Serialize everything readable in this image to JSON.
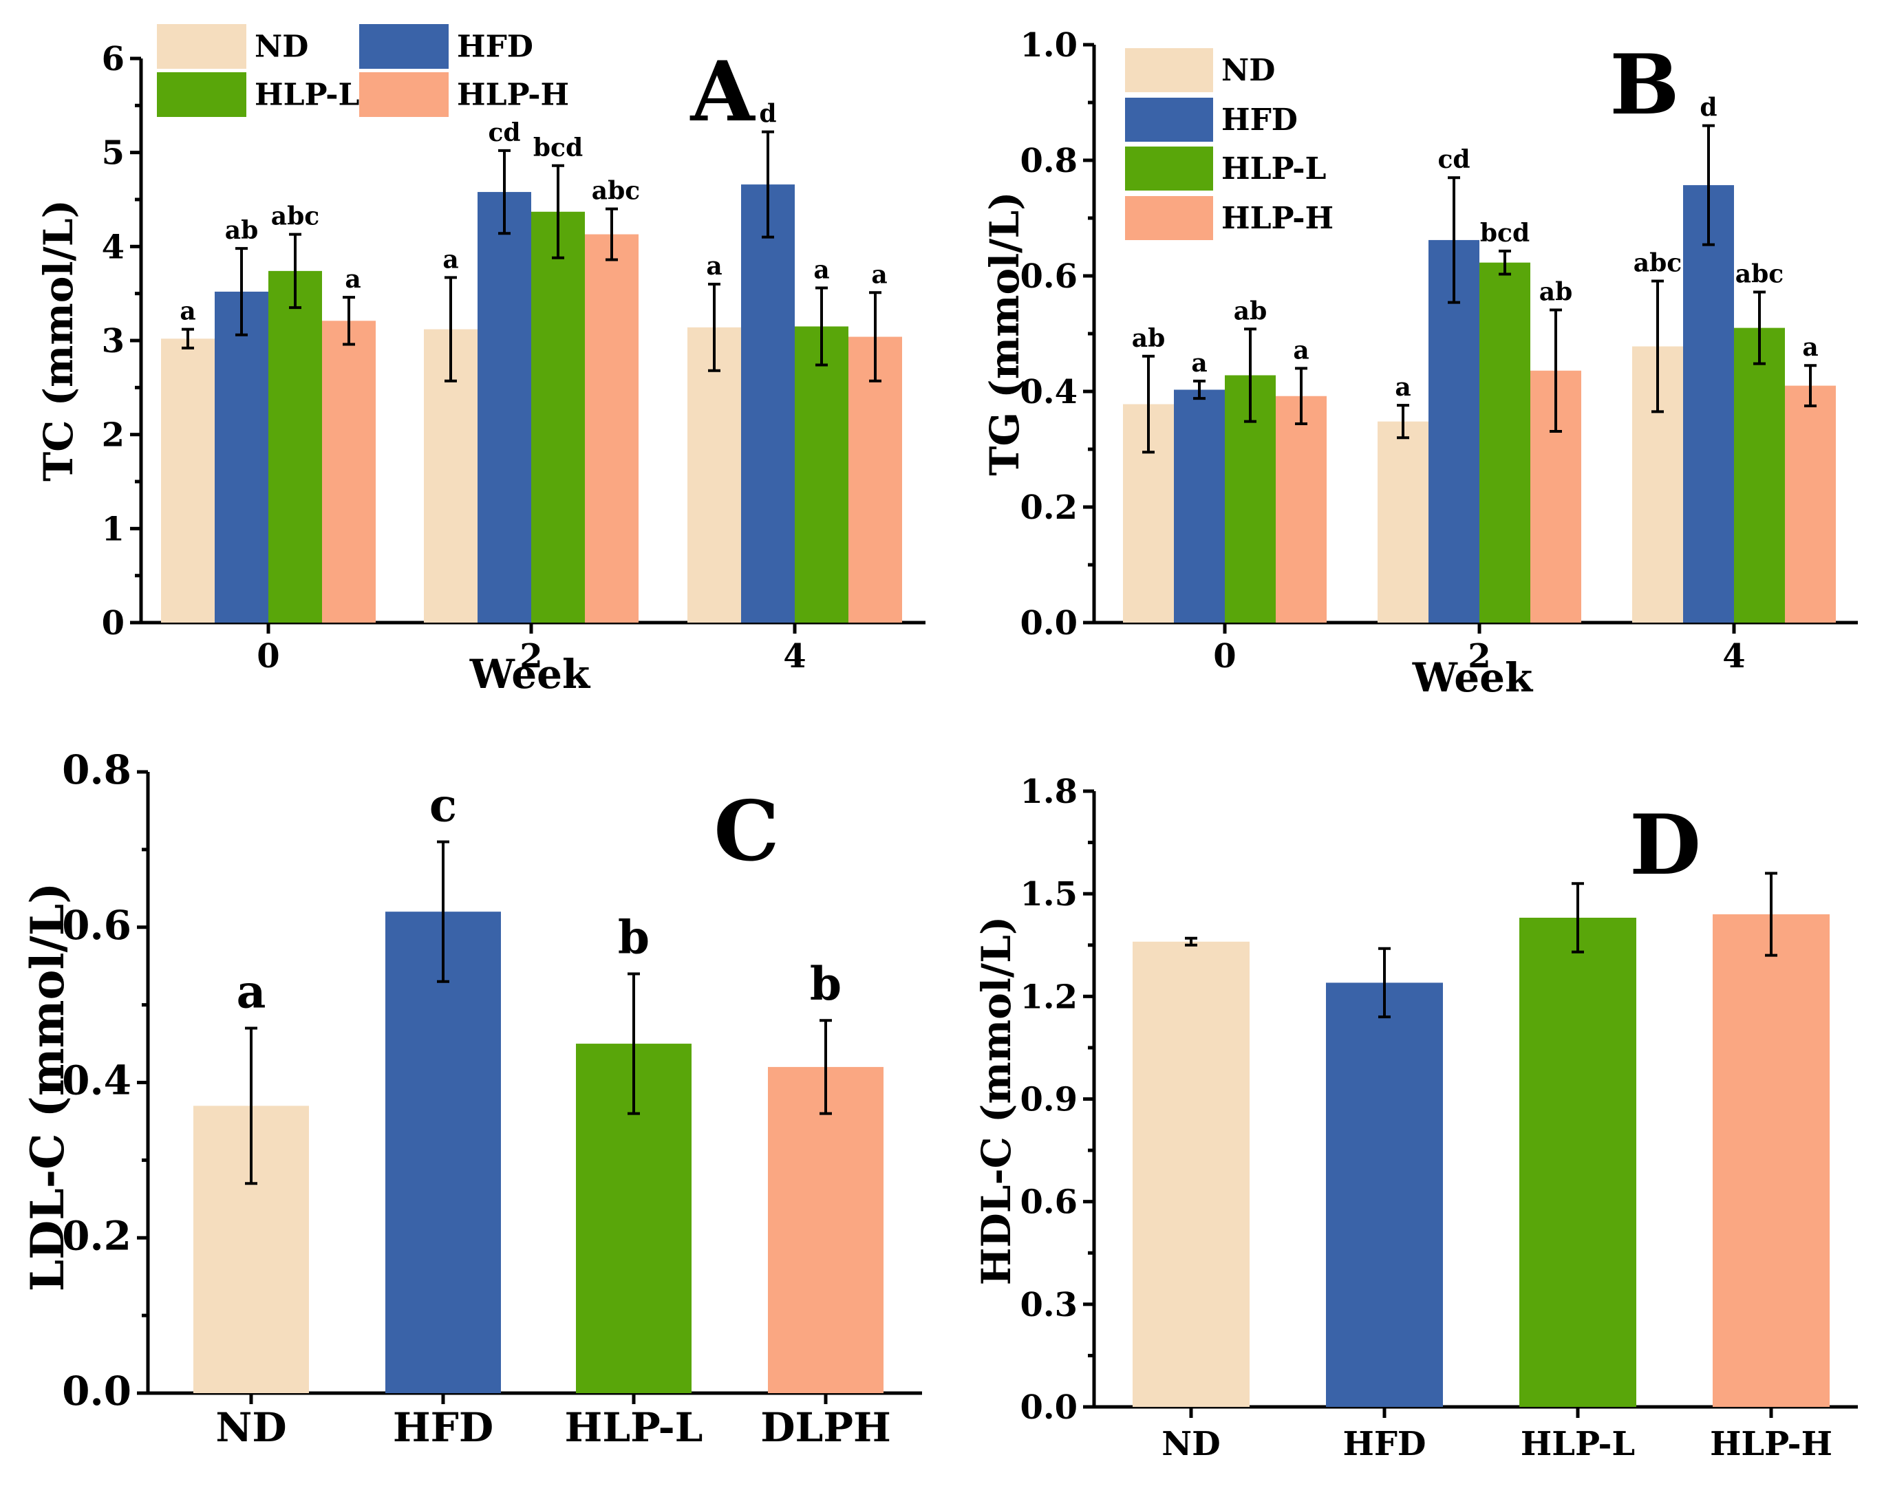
{
  "colors": {
    "ND": "#F5DDBE",
    "HFD": "#3A63A8",
    "HLP-L": "#59A60A",
    "HLP-H": "#FAA782"
  },
  "chart_data": [
    {
      "id": "A",
      "type": "bar",
      "panel_label": "A",
      "xlabel": "Week",
      "ylabel": "TC (mmol/L)",
      "ylim": [
        0,
        6
      ],
      "yticks": [
        "0",
        "1",
        "2",
        "3",
        "4",
        "5",
        "6"
      ],
      "categories": [
        "0",
        "2",
        "4"
      ],
      "legend": [
        "ND",
        "HFD",
        "HLP-L",
        "HLP-H"
      ],
      "series": [
        {
          "name": "ND",
          "values": [
            3.02,
            3.12,
            3.14
          ],
          "errors": [
            0.1,
            0.55,
            0.46
          ],
          "labels": [
            "a",
            "a",
            "a"
          ]
        },
        {
          "name": "HFD",
          "values": [
            3.52,
            4.58,
            4.66
          ],
          "errors": [
            0.46,
            0.44,
            0.56
          ],
          "labels": [
            "ab",
            "cd",
            "d"
          ]
        },
        {
          "name": "HLP-L",
          "values": [
            3.74,
            4.37,
            3.15
          ],
          "errors": [
            0.39,
            0.49,
            0.41
          ],
          "labels": [
            "abc",
            "bcd",
            "a"
          ]
        },
        {
          "name": "HLP-H",
          "values": [
            3.21,
            4.13,
            3.04
          ],
          "errors": [
            0.25,
            0.27,
            0.47
          ],
          "labels": [
            "a",
            "abc",
            "a"
          ]
        }
      ]
    },
    {
      "id": "B",
      "type": "bar",
      "panel_label": "B",
      "xlabel": "Week",
      "ylabel": "TG (mmol/L)",
      "ylim": [
        0,
        1
      ],
      "yticks": [
        "0.0",
        "0.2",
        "0.4",
        "0.6",
        "0.8",
        "1.0"
      ],
      "categories": [
        "0",
        "2",
        "4"
      ],
      "legend": [
        "ND",
        "HFD",
        "HLP-L",
        "HLP-H"
      ],
      "series": [
        {
          "name": "ND",
          "values": [
            0.378,
            0.348,
            0.478
          ],
          "errors": [
            0.083,
            0.028,
            0.113
          ],
          "labels": [
            "ab",
            "a",
            "abc"
          ]
        },
        {
          "name": "HFD",
          "values": [
            0.403,
            0.662,
            0.757
          ],
          "errors": [
            0.015,
            0.108,
            0.103
          ],
          "labels": [
            "a",
            "cd",
            "d"
          ]
        },
        {
          "name": "HLP-L",
          "values": [
            0.428,
            0.623,
            0.51
          ],
          "errors": [
            0.08,
            0.02,
            0.062
          ],
          "labels": [
            "ab",
            "bcd",
            "abc"
          ]
        },
        {
          "name": "HLP-H",
          "values": [
            0.392,
            0.436,
            0.41
          ],
          "errors": [
            0.048,
            0.105,
            0.035
          ],
          "labels": [
            "a",
            "ab",
            "a"
          ]
        }
      ]
    },
    {
      "id": "C",
      "type": "bar",
      "panel_label": "C",
      "xlabel": "",
      "ylabel": "LDL-C (mmol/L)",
      "ylim": [
        0,
        0.8
      ],
      "yticks": [
        "0.0",
        "0.2",
        "0.4",
        "0.6",
        "0.8"
      ],
      "categories": [
        "ND",
        "HFD",
        "HLP-L",
        "DLPH"
      ],
      "values": [
        0.37,
        0.62,
        0.45,
        0.42
      ],
      "errors": [
        0.1,
        0.09,
        0.09,
        0.06
      ],
      "labels": [
        "a",
        "c",
        "b",
        "b"
      ]
    },
    {
      "id": "D",
      "type": "bar",
      "panel_label": "D",
      "xlabel": "",
      "ylabel": "HDL-C (mmol/L)",
      "ylim": [
        0,
        1.8
      ],
      "yticks": [
        "0.0",
        "0.3",
        "0.6",
        "0.9",
        "1.2",
        "1.5",
        "1.8"
      ],
      "categories": [
        "ND",
        "HFD",
        "HLP-L",
        "HLP-H"
      ],
      "values": [
        1.36,
        1.24,
        1.43,
        1.44
      ],
      "errors": [
        0.01,
        0.1,
        0.1,
        0.12
      ],
      "labels": []
    }
  ]
}
